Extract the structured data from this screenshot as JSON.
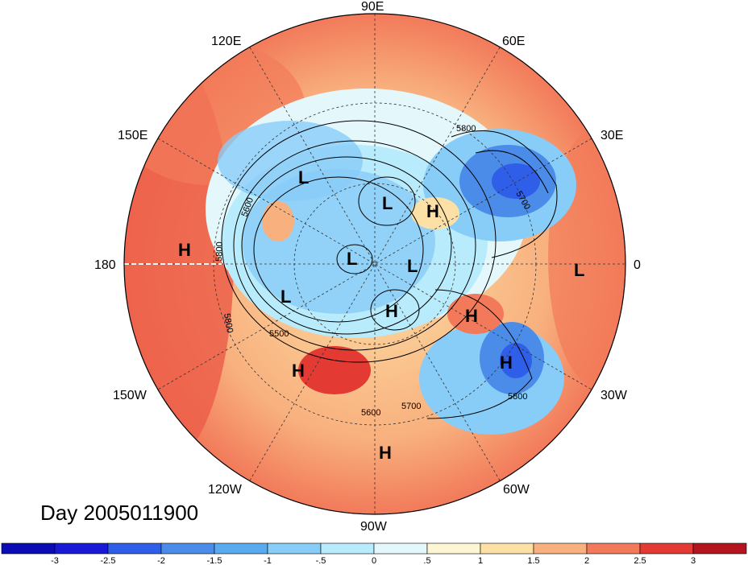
{
  "map": {
    "day_label": "Day 2005011900",
    "longitude_labels": [
      "90E",
      "120E",
      "60E",
      "150E",
      "30E",
      "180",
      "0",
      "150W",
      "30W",
      "120W",
      "60W",
      "90W"
    ],
    "contour_labels": [
      "5800",
      "5700",
      "5600",
      "5800",
      "5800",
      "5500",
      "5800",
      "5700",
      "5600"
    ],
    "pressure_centers": [
      "L",
      "L",
      "H",
      "L",
      "H",
      "L",
      "L",
      "H",
      "L",
      "H",
      "H",
      "H",
      "H"
    ]
  },
  "colorbar": {
    "ticks": [
      "-3",
      "-2.5",
      "-2",
      "-1.5",
      "-1",
      "-.5",
      "0",
      ".5",
      "1",
      "1.5",
      "2",
      "2.5",
      "3"
    ],
    "colors": [
      "#1a1ad6",
      "#2f5fe8",
      "#4a8ce8",
      "#5aaaf0",
      "#88ccf8",
      "#b8ecfc",
      "#e4f8fc",
      "#fdf6d2",
      "#fde0a6",
      "#f8b07e",
      "#f27a5a",
      "#e43a34",
      "#b4141e"
    ]
  }
}
